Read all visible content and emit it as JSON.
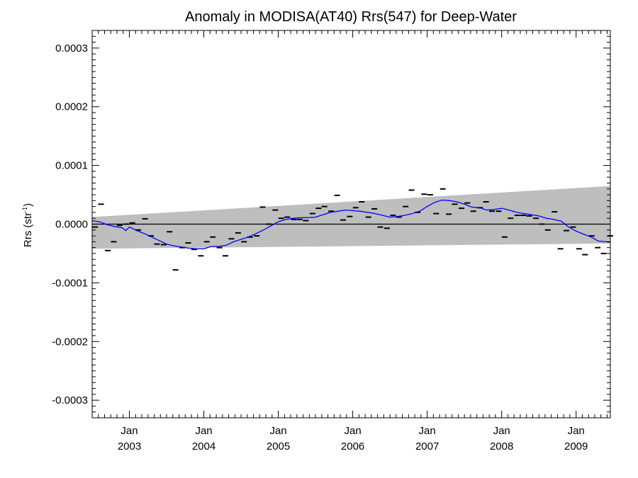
{
  "chart_data": {
    "type": "line",
    "title": "Anomaly in MODISA(AT40) Rrs(547) for Deep-Water",
    "ylabel_main": "Rrs (str",
    "ylabel_sup": "-1",
    "ylabel_close": ")",
    "xlabel": "",
    "xlim": [
      2002.5,
      2009.46
    ],
    "ylim": [
      -0.00033,
      0.00033
    ],
    "y_ticks": [
      {
        "value": 0.0003,
        "label": "0.0003"
      },
      {
        "value": 0.0002,
        "label": "0.0002"
      },
      {
        "value": 0.0001,
        "label": "0.0001"
      },
      {
        "value": 0.0,
        "label": "0.0000"
      },
      {
        "value": -0.0001,
        "label": "-0.0001"
      },
      {
        "value": -0.0002,
        "label": "-0.0002"
      },
      {
        "value": -0.0003,
        "label": "-0.0003"
      }
    ],
    "x_ticks": [
      {
        "value": 2003.0,
        "label1": "Jan",
        "label2": "2003"
      },
      {
        "value": 2004.0,
        "label1": "Jan",
        "label2": "2004"
      },
      {
        "value": 2005.0,
        "label1": "Jan",
        "label2": "2005"
      },
      {
        "value": 2006.0,
        "label1": "Jan",
        "label2": "2006"
      },
      {
        "value": 2007.0,
        "label1": "Jan",
        "label2": "2007"
      },
      {
        "value": 2008.0,
        "label1": "Jan",
        "label2": "2008"
      },
      {
        "value": 2009.0,
        "label1": "Jan",
        "label2": "2009"
      }
    ],
    "band": {
      "x": [
        2002.5,
        2009.46
      ],
      "upper": [
        1.2e-05,
        6.5e-05
      ],
      "lower": [
        -4.2e-05,
        -3.3e-05
      ],
      "color": "#bebebe"
    },
    "zero_line": 0.0,
    "monthly_points": {
      "color": "#000000",
      "x": [
        2002.54,
        2002.62,
        2002.71,
        2002.79,
        2002.87,
        2002.96,
        2003.04,
        2003.12,
        2003.21,
        2003.29,
        2003.37,
        2003.46,
        2003.54,
        2003.62,
        2003.71,
        2003.79,
        2003.87,
        2003.96,
        2004.04,
        2004.12,
        2004.21,
        2004.29,
        2004.37,
        2004.46,
        2004.54,
        2004.62,
        2004.71,
        2004.79,
        2004.87,
        2004.96,
        2005.04,
        2005.12,
        2005.21,
        2005.29,
        2005.37,
        2005.46,
        2005.54,
        2005.62,
        2005.71,
        2005.79,
        2005.87,
        2005.96,
        2006.04,
        2006.12,
        2006.21,
        2006.29,
        2006.37,
        2006.46,
        2006.54,
        2006.62,
        2006.71,
        2006.79,
        2006.87,
        2006.96,
        2007.04,
        2007.12,
        2007.21,
        2007.29,
        2007.37,
        2007.46,
        2007.54,
        2007.62,
        2007.71,
        2007.79,
        2007.87,
        2007.96,
        2008.04,
        2008.12,
        2008.21,
        2008.29,
        2008.37,
        2008.46,
        2008.54,
        2008.62,
        2008.71,
        2008.79,
        2008.87,
        2008.96,
        2009.04,
        2009.12,
        2009.21,
        2009.29,
        2009.37,
        2009.46
      ],
      "y": [
        -5e-06,
        3.4e-05,
        -4.5e-05,
        -3e-05,
        -2e-06,
        0.0,
        2e-06,
        -1e-05,
        9e-06,
        -2e-05,
        -3.4e-05,
        -3.5e-05,
        -1.3e-05,
        -7.8e-05,
        -4e-05,
        -3.2e-05,
        -4.3e-05,
        -5.4e-05,
        -3e-05,
        -2.2e-05,
        -4e-05,
        -5.4e-05,
        -2.5e-05,
        -1.5e-05,
        -3e-05,
        -2.2e-05,
        -2e-05,
        2.9e-05,
        0.0,
        2.4e-05,
        1e-05,
        1.2e-05,
        8e-06,
        8e-06,
        6e-06,
        1.8e-05,
        2.7e-05,
        3e-05,
        2.2e-05,
        4.9e-05,
        7e-06,
        1.3e-05,
        2.8e-05,
        3.8e-05,
        1.2e-05,
        2.6e-05,
        -5e-06,
        -7e-06,
        1.5e-05,
        1.2e-05,
        3e-05,
        5.8e-05,
        2e-05,
        5.1e-05,
        5e-05,
        1.8e-05,
        6e-05,
        1.7e-05,
        3.4e-05,
        2.7e-05,
        3.6e-05,
        2.2e-05,
        2.8e-05,
        3.8e-05,
        2.2e-05,
        2.2e-05,
        -2.2e-05,
        1e-05,
        1.5e-05,
        1.5e-05,
        1.4e-05,
        1e-05,
        0.0,
        -1e-05,
        2.1e-05,
        -4.2e-05,
        -1.1e-05,
        -5e-06,
        -4.2e-05,
        -5.2e-05,
        -2e-05,
        -4e-05,
        -5e-05,
        -2e-05
      ]
    },
    "smoothed_series": {
      "color": "#0000ff",
      "x": [
        2002.5,
        2002.6,
        2002.7,
        2002.8,
        2002.9,
        2002.95,
        2003.0,
        2003.1,
        2003.2,
        2003.3,
        2003.4,
        2003.5,
        2003.6,
        2003.7,
        2003.8,
        2003.9,
        2004.0,
        2004.1,
        2004.2,
        2004.3,
        2004.4,
        2004.5,
        2004.6,
        2004.7,
        2004.8,
        2004.9,
        2005.0,
        2005.1,
        2005.2,
        2005.3,
        2005.4,
        2005.5,
        2005.6,
        2005.7,
        2005.8,
        2005.9,
        2006.0,
        2006.1,
        2006.2,
        2006.3,
        2006.4,
        2006.5,
        2006.6,
        2006.7,
        2006.8,
        2006.9,
        2007.0,
        2007.1,
        2007.2,
        2007.3,
        2007.4,
        2007.5,
        2007.6,
        2007.7,
        2007.8,
        2007.9,
        2008.0,
        2008.1,
        2008.2,
        2008.3,
        2008.4,
        2008.5,
        2008.6,
        2008.7,
        2008.8,
        2008.9,
        2009.0,
        2009.1,
        2009.2,
        2009.3,
        2009.4,
        2009.46
      ],
      "y": [
        6e-06,
        4e-06,
        -1e-06,
        -4e-06,
        -6e-06,
        -1.1e-05,
        -5e-06,
        -1.1e-05,
        -1.6e-05,
        -2.2e-05,
        -2.8e-05,
        -3.4e-05,
        -3.7e-05,
        -3.9e-05,
        -4.1e-05,
        -4.2e-05,
        -4.2e-05,
        -3.8e-05,
        -3.8e-05,
        -3.6e-05,
        -3e-05,
        -2.6e-05,
        -2.2e-05,
        -1.6e-05,
        -1e-05,
        -3e-06,
        4e-06,
        8e-06,
        1e-05,
        1.1e-05,
        1.1e-05,
        1.2e-05,
        1.6e-05,
        2e-05,
        2.2e-05,
        2.4e-05,
        2.3e-05,
        2.2e-05,
        2e-05,
        1.8e-05,
        1.5e-05,
        1.2e-05,
        1.3e-05,
        1.5e-05,
        1.8e-05,
        2.2e-05,
        3e-05,
        3.7e-05,
        4.1e-05,
        4e-05,
        3.8e-05,
        3.4e-05,
        2.9e-05,
        2.8e-05,
        2.4e-05,
        2.5e-05,
        2.7e-05,
        2.4e-05,
        2e-05,
        1.8e-05,
        1.6e-05,
        1.4e-05,
        1e-05,
        8e-06,
        5e-06,
        -5e-06,
        -1.2e-05,
        -1.7e-05,
        -2.2e-05,
        -2.9e-05,
        -3e-05,
        -3.1e-05
      ]
    },
    "grid": false
  }
}
